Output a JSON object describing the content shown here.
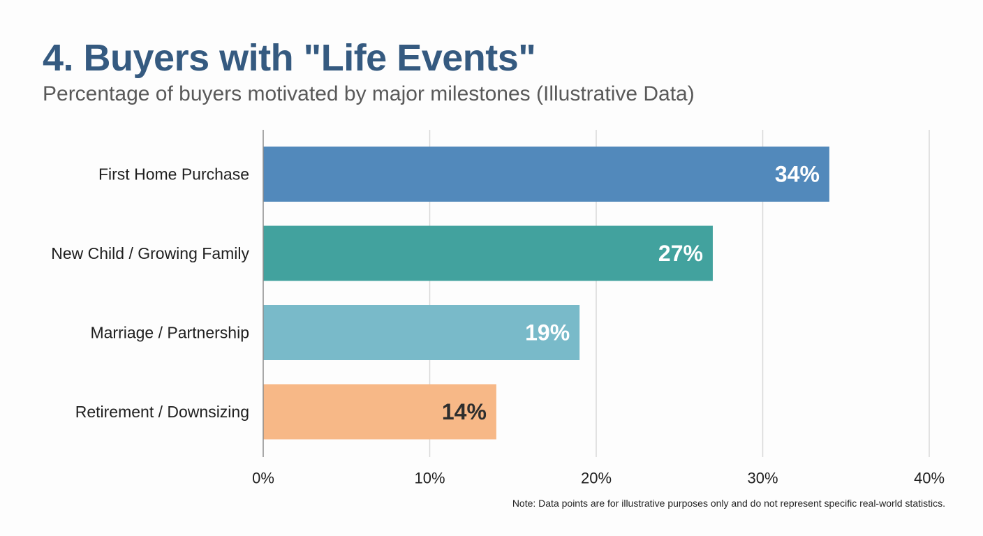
{
  "header": {
    "title": "4. Buyers with \"Life Events\"",
    "subtitle": "Percentage of buyers motivated by major milestones (Illustrative Data)"
  },
  "footer": {
    "note": "Note: Data points are for illustrative purposes only and do not represent specific real-world statistics."
  },
  "chart_data": {
    "type": "bar",
    "orientation": "horizontal",
    "title": "4. Buyers with \"Life Events\"",
    "subtitle": "Percentage of buyers motivated by major milestones (Illustrative Data)",
    "categories": [
      "First Home Purchase",
      "New Child / Growing Family",
      "Marriage / Partnership",
      "Retirement / Downsizing"
    ],
    "values": [
      34,
      27,
      19,
      14
    ],
    "value_labels": [
      "34%",
      "27%",
      "19%",
      "14%"
    ],
    "bar_colors": [
      "#5289bb",
      "#42a29e",
      "#79bac9",
      "#f7b887"
    ],
    "label_colors": [
      "#ffffff",
      "#ffffff",
      "#ffffff",
      "#2e2e2e"
    ],
    "xlim": [
      0,
      40
    ],
    "xticks": [
      0,
      10,
      20,
      30,
      40
    ],
    "xtick_labels": [
      "0%",
      "10%",
      "20%",
      "30%",
      "40%"
    ],
    "xlabel": "",
    "ylabel": "",
    "grid": true,
    "gridline_color": "#d9d9d9",
    "axis_color": "#8c8c8c"
  }
}
